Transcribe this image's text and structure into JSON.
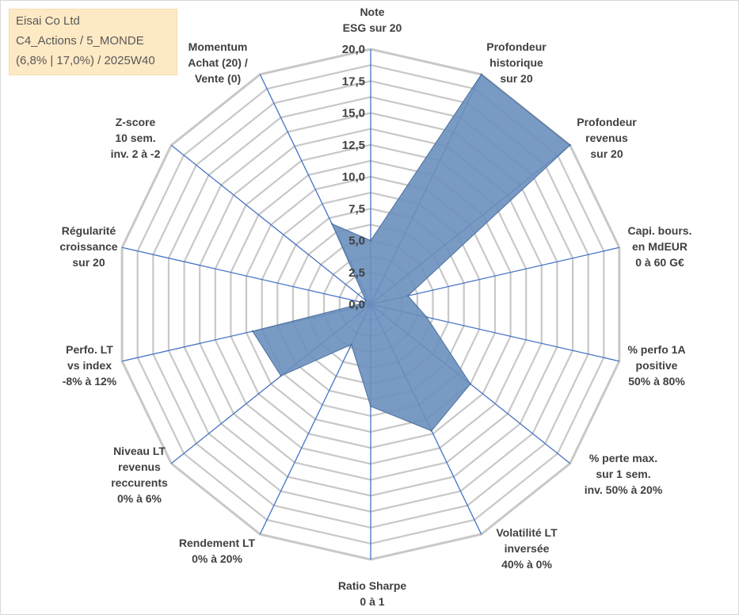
{
  "info_box": {
    "line1": "Eisai Co Ltd",
    "line2": "C4_Actions / 5_MONDE",
    "line3": "(6,8% | 17,0%) / 2025W40"
  },
  "chart_data": {
    "type": "radar",
    "ylim": [
      0,
      20
    ],
    "tick_values": [
      0,
      2.5,
      5,
      7.5,
      10,
      12.5,
      15,
      17.5,
      20
    ],
    "tick_labels": [
      "0,0",
      "2,5",
      "5,0",
      "7,5",
      "10,0",
      "12,5",
      "15,0",
      "17,5",
      "20,0"
    ],
    "axes": [
      {
        "label": [
          "Note",
          "ESG sur 20"
        ],
        "value": 5.0
      },
      {
        "label": [
          "Profondeur",
          "historique",
          "sur 20"
        ],
        "value": 20.0
      },
      {
        "label": [
          "Profondeur",
          "revenus",
          "sur 20"
        ],
        "value": 20.0
      },
      {
        "label": [
          "Capi. bours.",
          "en MdEUR",
          "0 à 60 G€"
        ],
        "value": 3.0
      },
      {
        "label": [
          "% perfo 1A",
          "positive",
          "50% à 80%"
        ],
        "value": 4.5
      },
      {
        "label": [
          "% perte max.",
          "sur 1 sem.",
          "inv. 50% à 20%"
        ],
        "value": 10.0
      },
      {
        "label": [
          "Volatilité LT",
          "inversée",
          "40% à 0%"
        ],
        "value": 11.0
      },
      {
        "label": [
          "Ratio Sharpe",
          "0 à 1"
        ],
        "value": 8.0
      },
      {
        "label": [
          "Rendement LT",
          "0% à 20%"
        ],
        "value": 3.5
      },
      {
        "label": [
          "Niveau LT",
          "revenus",
          "reccurents",
          "0% à 6%"
        ],
        "value": 9.0
      },
      {
        "label": [
          "Perfo. LT",
          "vs index",
          "-8% à 12%"
        ],
        "value": 9.5
      },
      {
        "label": [
          "Régularité",
          "croissance",
          "sur 20"
        ],
        "value": 0.5
      },
      {
        "label": [
          "Z-score",
          "10 sem.",
          "inv. 2 à -2"
        ],
        "value": 0.5
      },
      {
        "label": [
          "Momentum",
          "Achat (20) /",
          "Vente (0)"
        ],
        "value": 7.0
      }
    ],
    "series": [
      {
        "color": "#6a8fbd"
      }
    ],
    "colors": {
      "grid": "#c8c8c8",
      "spoke": "#4472c4",
      "fill": "#6a8fbd",
      "outline": "#4a6f9f"
    }
  }
}
